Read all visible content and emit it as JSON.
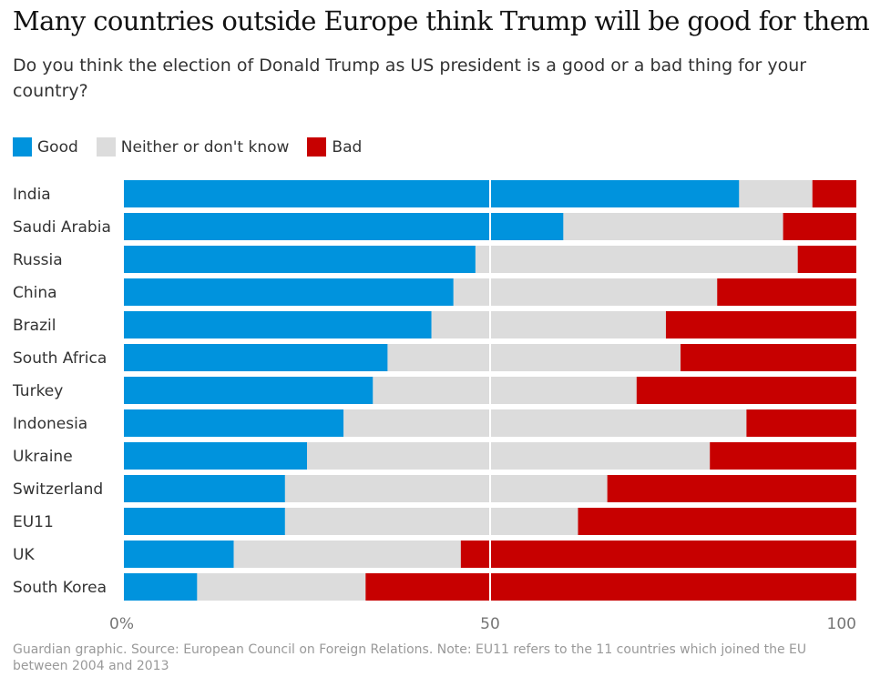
{
  "title": "Many countries outside Europe think Trump will be good for them",
  "subtitle": "Do you think the election of Donald Trump as US president is a good or a bad thing for your country?",
  "legend": [
    {
      "label": "Good",
      "color": "#0093dd"
    },
    {
      "label": "Neither or don't know",
      "color": "#dcdcdc"
    },
    {
      "label": "Bad",
      "color": "#c70000"
    }
  ],
  "source": "Guardian graphic. Source: European Council on Foreign Relations. Note: EU11 refers to the 11 countries which joined the EU between 2004 and 2013",
  "chart_data": {
    "type": "bar",
    "orientation": "horizontal",
    "stacked": true,
    "title": "Many countries outside Europe think Trump will be good for them",
    "xlabel": "",
    "ylabel": "",
    "xlim": [
      0,
      100
    ],
    "xticks": [
      0,
      50,
      100
    ],
    "xtick_labels": [
      "0%",
      "50",
      "100"
    ],
    "categories": [
      "India",
      "Saudi Arabia",
      "Russia",
      "China",
      "Brazil",
      "South Africa",
      "Turkey",
      "Indonesia",
      "Ukraine",
      "Switzerland",
      "EU11",
      "UK",
      "South Korea"
    ],
    "series": [
      {
        "name": "Good",
        "color": "#0093dd",
        "values": [
          84,
          60,
          48,
          45,
          42,
          36,
          34,
          30,
          25,
          22,
          22,
          15,
          10
        ]
      },
      {
        "name": "Neither or don't know",
        "color": "#dcdcdc",
        "values": [
          10,
          30,
          44,
          36,
          32,
          40,
          36,
          55,
          55,
          44,
          40,
          31,
          23
        ]
      },
      {
        "name": "Bad",
        "color": "#c70000",
        "values": [
          6,
          10,
          8,
          19,
          26,
          24,
          30,
          15,
          20,
          34,
          38,
          54,
          67
        ]
      }
    ]
  }
}
